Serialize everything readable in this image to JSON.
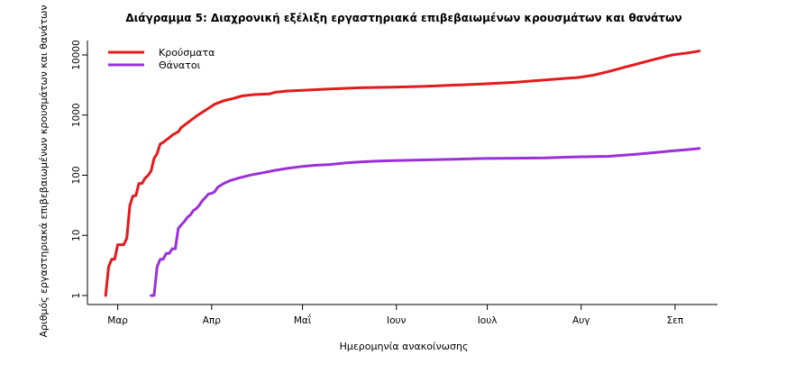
{
  "chart_data": {
    "type": "line",
    "title": "Διάγραμμα 5: Διαχρονική εξέλιξη εργαστηριακά επιβεβαιωμένων κρουσμάτων και θανάτων",
    "xlabel": "Ημερομηνία ανακοίνωσης",
    "ylabel": "Αριθμός εργαστηριακά επιβεβαιωμένων κρουσμάτων και θανάτων",
    "y_scale": "log",
    "ylim": [
      1,
      10000
    ],
    "y_ticks": [
      {
        "value": 1,
        "label": "1"
      },
      {
        "value": 10,
        "label": "10"
      },
      {
        "value": 100,
        "label": "100"
      },
      {
        "value": 1000,
        "label": "1000"
      },
      {
        "value": 10000,
        "label": "10000"
      }
    ],
    "xlim": [
      "2020-02-20",
      "2020-09-15"
    ],
    "x_ticks": [
      {
        "value": "2020-03-01",
        "label": "Μαρ"
      },
      {
        "value": "2020-04-01",
        "label": "Απρ"
      },
      {
        "value": "2020-05-01",
        "label": "Μαΐ"
      },
      {
        "value": "2020-06-01",
        "label": "Ιουν"
      },
      {
        "value": "2020-07-01",
        "label": "Ιουλ"
      },
      {
        "value": "2020-08-01",
        "label": "Αυγ"
      },
      {
        "value": "2020-09-01",
        "label": "Σεπ"
      }
    ],
    "legend_position": "top-left",
    "grid": false,
    "series": [
      {
        "name": "Κρούσματα",
        "color": "#e41a1c",
        "points": [
          [
            "2020-02-26",
            1
          ],
          [
            "2020-02-27",
            3
          ],
          [
            "2020-02-28",
            4
          ],
          [
            "2020-02-29",
            4
          ],
          [
            "2020-03-01",
            7
          ],
          [
            "2020-03-03",
            7
          ],
          [
            "2020-03-04",
            9
          ],
          [
            "2020-03-05",
            31
          ],
          [
            "2020-03-06",
            45
          ],
          [
            "2020-03-07",
            46
          ],
          [
            "2020-03-08",
            73
          ],
          [
            "2020-03-09",
            73
          ],
          [
            "2020-03-10",
            89
          ],
          [
            "2020-03-11",
            99
          ],
          [
            "2020-03-12",
            117
          ],
          [
            "2020-03-13",
            190
          ],
          [
            "2020-03-14",
            228
          ],
          [
            "2020-03-15",
            331
          ],
          [
            "2020-03-16",
            352
          ],
          [
            "2020-03-17",
            387
          ],
          [
            "2020-03-18",
            418
          ],
          [
            "2020-03-19",
            464
          ],
          [
            "2020-03-20",
            495
          ],
          [
            "2020-03-21",
            530
          ],
          [
            "2020-03-22",
            624
          ],
          [
            "2020-03-24",
            743
          ],
          [
            "2020-03-27",
            966
          ],
          [
            "2020-03-30",
            1212
          ],
          [
            "2020-04-02",
            1514
          ],
          [
            "2020-04-05",
            1735
          ],
          [
            "2020-04-08",
            1884
          ],
          [
            "2020-04-11",
            2081
          ],
          [
            "2020-04-15",
            2192
          ],
          [
            "2020-04-20",
            2245
          ],
          [
            "2020-04-22",
            2401
          ],
          [
            "2020-04-26",
            2517
          ],
          [
            "2020-05-01",
            2591
          ],
          [
            "2020-05-10",
            2710
          ],
          [
            "2020-05-20",
            2850
          ],
          [
            "2020-05-31",
            2917
          ],
          [
            "2020-06-10",
            3000
          ],
          [
            "2020-06-20",
            3150
          ],
          [
            "2020-06-30",
            3300
          ],
          [
            "2020-07-10",
            3500
          ],
          [
            "2020-07-20",
            3850
          ],
          [
            "2020-07-31",
            4227
          ],
          [
            "2020-08-05",
            4600
          ],
          [
            "2020-08-10",
            5300
          ],
          [
            "2020-08-15",
            6200
          ],
          [
            "2020-08-20",
            7200
          ],
          [
            "2020-08-25",
            8400
          ],
          [
            "2020-08-31",
            10000
          ],
          [
            "2020-09-05",
            10800
          ],
          [
            "2020-09-09",
            11600
          ]
        ]
      },
      {
        "name": "Θάνατοι",
        "color": "#9b30d9",
        "points": [
          [
            "2020-03-12",
            1
          ],
          [
            "2020-03-13",
            1
          ],
          [
            "2020-03-14",
            3
          ],
          [
            "2020-03-15",
            4
          ],
          [
            "2020-03-16",
            4
          ],
          [
            "2020-03-17",
            5
          ],
          [
            "2020-03-18",
            5
          ],
          [
            "2020-03-19",
            6
          ],
          [
            "2020-03-20",
            6
          ],
          [
            "2020-03-21",
            13
          ],
          [
            "2020-03-22",
            15
          ],
          [
            "2020-03-23",
            17
          ],
          [
            "2020-03-24",
            20
          ],
          [
            "2020-03-25",
            22
          ],
          [
            "2020-03-26",
            26
          ],
          [
            "2020-03-27",
            28
          ],
          [
            "2020-03-28",
            32
          ],
          [
            "2020-03-29",
            38
          ],
          [
            "2020-03-30",
            43
          ],
          [
            "2020-03-31",
            49
          ],
          [
            "2020-04-01",
            50
          ],
          [
            "2020-04-02",
            53
          ],
          [
            "2020-04-03",
            63
          ],
          [
            "2020-04-05",
            73
          ],
          [
            "2020-04-07",
            81
          ],
          [
            "2020-04-10",
            90
          ],
          [
            "2020-04-14",
            101
          ],
          [
            "2020-04-18",
            110
          ],
          [
            "2020-04-22",
            121
          ],
          [
            "2020-04-26",
            130
          ],
          [
            "2020-05-01",
            140
          ],
          [
            "2020-05-05",
            146
          ],
          [
            "2020-05-10",
            151
          ],
          [
            "2020-05-15",
            160
          ],
          [
            "2020-05-20",
            166
          ],
          [
            "2020-05-25",
            171
          ],
          [
            "2020-05-31",
            175
          ],
          [
            "2020-06-10",
            180
          ],
          [
            "2020-06-20",
            185
          ],
          [
            "2020-06-30",
            190
          ],
          [
            "2020-07-10",
            192
          ],
          [
            "2020-07-20",
            194
          ],
          [
            "2020-07-31",
            202
          ],
          [
            "2020-08-10",
            206
          ],
          [
            "2020-08-20",
            225
          ],
          [
            "2020-08-31",
            254
          ],
          [
            "2020-09-05",
            266
          ],
          [
            "2020-09-09",
            279
          ]
        ]
      }
    ]
  }
}
